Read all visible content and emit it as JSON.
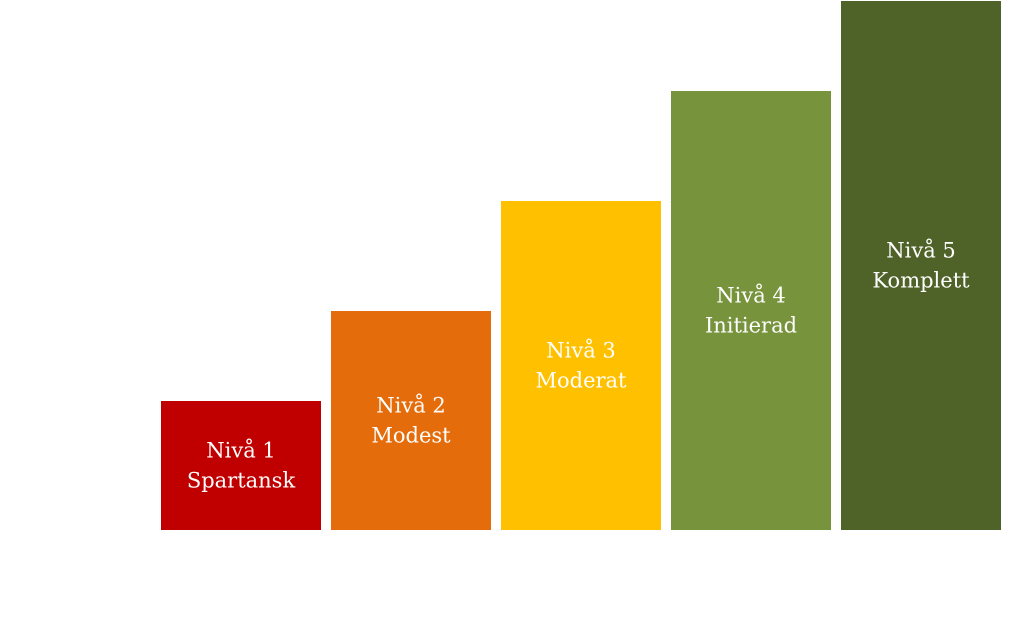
{
  "nodes": [
    {
      "level": "Nivå 1",
      "name": "Spartansk"
    },
    {
      "level": "Nivå 2",
      "name": "Modest"
    },
    {
      "level": "Nivå 3",
      "name": "Moderat"
    },
    {
      "level": "Nivå 4",
      "name": "Initierad"
    },
    {
      "level": "Nivå 5",
      "name": "Komplett"
    }
  ]
}
